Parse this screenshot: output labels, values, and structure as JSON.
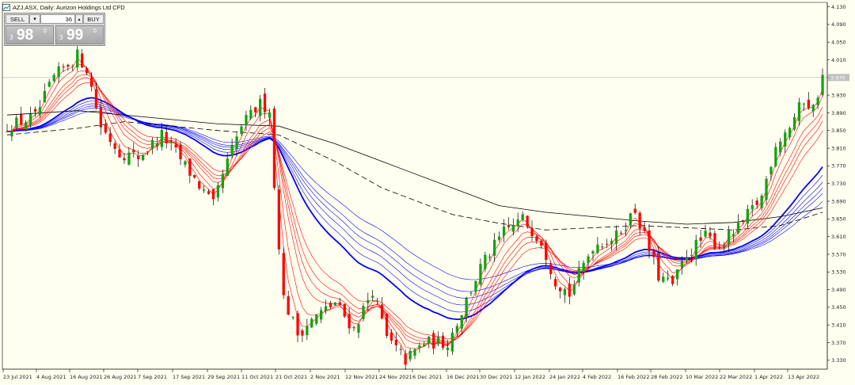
{
  "chart_title": "AZJ.ASX, Daily:  Aurizon Holdings Ltd CFD",
  "trade_panel": {
    "sell_label": "SELL",
    "buy_label": "BUY",
    "lot_value": "36",
    "dropdown_glyph": "▾",
    "spin_glyph": "▴",
    "sell_quote": {
      "prefix": "3",
      "big": "98",
      "sup": "0"
    },
    "buy_quote": {
      "prefix": "3",
      "big": "99",
      "sup": "0"
    }
  },
  "current_price_label": "3.970",
  "colors": {
    "background": "#fffff0",
    "bull_candle": "#13a313",
    "bear_candle": "#ff0000",
    "short_ma": "#ff0000",
    "long_ma": "#0000ff",
    "sma": "#000000"
  },
  "chart_data": {
    "type": "candlestick",
    "symbol": "AZJ.ASX",
    "timeframe": "Daily",
    "ylim": [
      3.31,
      4.14
    ],
    "y_ticks": [
      "4.130",
      "4.090",
      "4.050",
      "4.010",
      "3.970",
      "3.930",
      "3.890",
      "3.850",
      "3.810",
      "3.770",
      "3.730",
      "3.690",
      "3.650",
      "3.610",
      "3.570",
      "3.530",
      "3.490",
      "3.450",
      "3.410",
      "3.370",
      "3.330"
    ],
    "x_ticks": [
      "23 Jul 2021",
      "4 Aug 2021",
      "16 Aug 2021",
      "26 Aug 2021",
      "7 Sep 2021",
      "17 Sep 2021",
      "29 Sep 2021",
      "11 Oct 2021",
      "21 Oct 2021",
      "2 Nov 2021",
      "12 Nov 2021",
      "24 Nov 2021",
      "6 Dec 2021",
      "16 Dec 2021",
      "30 Dec 2021",
      "12 Jan 2022",
      "24 Jan 2022",
      "4 Feb 2022",
      "16 Feb 2022",
      "28 Feb 2022",
      "10 Mar 2022",
      "22 Mar 2022",
      "1 Apr 2022",
      "13 Apr 2022"
    ],
    "price_anchors": [
      {
        "t": 0,
        "p": 3.86
      },
      {
        "t": 6,
        "p": 3.88
      },
      {
        "t": 10,
        "p": 3.97
      },
      {
        "t": 15,
        "p": 4.02
      },
      {
        "t": 17,
        "p": 3.99
      },
      {
        "t": 20,
        "p": 3.86
      },
      {
        "t": 24,
        "p": 3.8
      },
      {
        "t": 28,
        "p": 3.79
      },
      {
        "t": 33,
        "p": 3.84
      },
      {
        "t": 36,
        "p": 3.8
      },
      {
        "t": 40,
        "p": 3.74
      },
      {
        "t": 44,
        "p": 3.68
      },
      {
        "t": 46,
        "p": 3.75
      },
      {
        "t": 50,
        "p": 3.86
      },
      {
        "t": 54,
        "p": 3.91
      },
      {
        "t": 56,
        "p": 3.9
      },
      {
        "t": 57,
        "p": 3.72
      },
      {
        "t": 59,
        "p": 3.47
      },
      {
        "t": 62,
        "p": 3.39
      },
      {
        "t": 66,
        "p": 3.43
      },
      {
        "t": 70,
        "p": 3.46
      },
      {
        "t": 74,
        "p": 3.4
      },
      {
        "t": 78,
        "p": 3.49
      },
      {
        "t": 81,
        "p": 3.38
      },
      {
        "t": 85,
        "p": 3.33
      },
      {
        "t": 89,
        "p": 3.37
      },
      {
        "t": 94,
        "p": 3.37
      },
      {
        "t": 97,
        "p": 3.44
      },
      {
        "t": 101,
        "p": 3.54
      },
      {
        "t": 106,
        "p": 3.62
      },
      {
        "t": 110,
        "p": 3.65
      },
      {
        "t": 114,
        "p": 3.6
      },
      {
        "t": 117,
        "p": 3.51
      },
      {
        "t": 120,
        "p": 3.48
      },
      {
        "t": 125,
        "p": 3.59
      },
      {
        "t": 130,
        "p": 3.61
      },
      {
        "t": 134,
        "p": 3.67
      },
      {
        "t": 136,
        "p": 3.61
      },
      {
        "t": 139,
        "p": 3.52
      },
      {
        "t": 142,
        "p": 3.5
      },
      {
        "t": 145,
        "p": 3.57
      },
      {
        "t": 149,
        "p": 3.61
      },
      {
        "t": 152,
        "p": 3.59
      },
      {
        "t": 156,
        "p": 3.63
      },
      {
        "t": 161,
        "p": 3.7
      },
      {
        "t": 164,
        "p": 3.82
      },
      {
        "t": 167,
        "p": 3.86
      },
      {
        "t": 170,
        "p": 3.92
      },
      {
        "t": 172,
        "p": 3.9
      },
      {
        "t": 174,
        "p": 3.97
      }
    ],
    "candle_count": 175,
    "sma_50": [
      [
        0,
        3.885
      ],
      [
        15,
        3.895
      ],
      [
        30,
        3.88
      ],
      [
        45,
        3.865
      ],
      [
        58,
        3.86
      ],
      [
        70,
        3.82
      ],
      [
        80,
        3.78
      ],
      [
        95,
        3.72
      ],
      [
        105,
        3.68
      ],
      [
        115,
        3.665
      ],
      [
        125,
        3.655
      ],
      [
        135,
        3.645
      ],
      [
        145,
        3.638
      ],
      [
        155,
        3.642
      ],
      [
        165,
        3.655
      ],
      [
        174,
        3.675
      ]
    ],
    "sma_100_dashed": [
      [
        0,
        3.84
      ],
      [
        15,
        3.855
      ],
      [
        25,
        3.87
      ],
      [
        35,
        3.86
      ],
      [
        45,
        3.85
      ],
      [
        58,
        3.84
      ],
      [
        70,
        3.78
      ],
      [
        80,
        3.72
      ],
      [
        95,
        3.66
      ],
      [
        105,
        3.64
      ],
      [
        115,
        3.625
      ],
      [
        125,
        3.63
      ],
      [
        135,
        3.635
      ],
      [
        145,
        3.63
      ],
      [
        155,
        3.625
      ],
      [
        165,
        3.635
      ],
      [
        174,
        3.665
      ]
    ]
  }
}
